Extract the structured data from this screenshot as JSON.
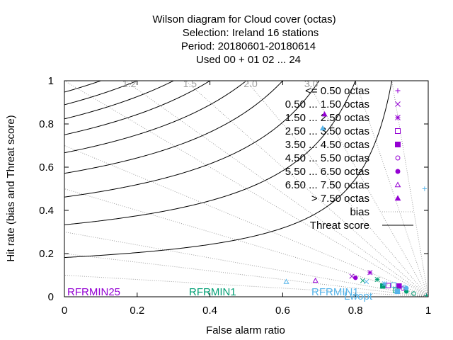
{
  "chart_data": {
    "type": "scatter",
    "title_lines": [
      "Wilson diagram  for Cloud cover (octas)",
      "Selection: Ireland      16 stations",
      "Period: 20180601-20180614",
      "Used  00 + 01 02 ... 24"
    ],
    "xlabel": "False alarm ratio",
    "ylabel": "Hit rate (bias and Threat score)",
    "xlim": [
      0,
      1
    ],
    "ylim": [
      0,
      1
    ],
    "xticks": [
      "0",
      "0.2",
      "0.4",
      "0.6",
      "0.8",
      "1"
    ],
    "yticks": [
      "0",
      "0.2",
      "0.4",
      "0.6",
      "0.8",
      "1"
    ],
    "bias_lines": [
      0.1,
      0.2,
      0.3,
      0.5,
      0.7,
      1.0,
      1.2,
      1.5,
      2.0,
      3.0,
      5.0,
      10.0
    ],
    "bias_labels": [
      {
        "value": 1.2,
        "text": "1.2"
      },
      {
        "value": 1.5,
        "text": "1.5"
      },
      {
        "value": 2.0,
        "text": "2.0"
      },
      {
        "value": 3.0,
        "text": "3.0"
      }
    ],
    "threat_scores": [
      0.1,
      0.2,
      0.3,
      0.4,
      0.5,
      0.6,
      0.7,
      0.8,
      0.9
    ],
    "legend": {
      "placement": "top-right",
      "entries": [
        {
          "label": "<= 0.50 octas",
          "marker": "plus",
          "color": "#9400d3"
        },
        {
          "label": "0.50 ... 1.50 octas",
          "marker": "cross",
          "color": "#9400d3"
        },
        {
          "label": "1.50 ... 2.50 octas",
          "marker": "star",
          "color": "#9400d3"
        },
        {
          "label": "2.50 ... 3.50 octas",
          "marker": "square-open",
          "color": "#9400d3"
        },
        {
          "label": "3.50 ... 4.50 octas",
          "marker": "square-filled",
          "color": "#9400d3"
        },
        {
          "label": "4.50 ... 5.50 octas",
          "marker": "circle-open",
          "color": "#9400d3"
        },
        {
          "label": "5.50 ... 6.50 octas",
          "marker": "circle-filled",
          "color": "#9400d3"
        },
        {
          "label": "6.50 ... 7.50 octas",
          "marker": "triangle-open",
          "color": "#9400d3"
        },
        {
          "label": "> 7.50 octas",
          "marker": "triangle-filled",
          "color": "#9400d3"
        },
        {
          "label": "bias",
          "marker": "dotted-line",
          "color": "#a0a0a0"
        },
        {
          "label": "Threat score",
          "marker": "solid-line",
          "color": "#000000"
        }
      ]
    },
    "models": [
      {
        "name": "RFRMIN25",
        "color": "#9400d3"
      },
      {
        "name": "RFRMIN1",
        "color": "#009e73"
      },
      {
        "name": "RFRMIN1",
        "color": "#56b4e9"
      },
      {
        "name": "Lwopt",
        "color": "#56b4e9"
      }
    ],
    "series": [
      {
        "model": "RFRMIN25",
        "color": "#9400d3",
        "points": [
          {
            "x": 0.995,
            "y": 0.005,
            "marker": "plus"
          },
          {
            "x": 0.79,
            "y": 0.095,
            "marker": "cross"
          },
          {
            "x": 0.84,
            "y": 0.112,
            "marker": "star"
          },
          {
            "x": 0.89,
            "y": 0.052,
            "marker": "square-open"
          },
          {
            "x": 0.92,
            "y": 0.05,
            "marker": "square-filled"
          },
          {
            "x": 0.93,
            "y": 0.038,
            "marker": "circle-open"
          },
          {
            "x": 0.8,
            "y": 0.088,
            "marker": "circle-filled"
          },
          {
            "x": 0.69,
            "y": 0.075,
            "marker": "triangle-open"
          },
          {
            "x": 0.715,
            "y": 0.845,
            "marker": "triangle-filled"
          }
        ]
      },
      {
        "model": "RFRMIN1",
        "color": "#009e73",
        "points": [
          {
            "x": 0.995,
            "y": 0.005,
            "marker": "plus"
          },
          {
            "x": 0.82,
            "y": 0.075,
            "marker": "cross"
          },
          {
            "x": 0.86,
            "y": 0.08,
            "marker": "star"
          },
          {
            "x": 0.875,
            "y": 0.05,
            "marker": "square-filled"
          },
          {
            "x": 0.91,
            "y": 0.03,
            "marker": "square-open"
          },
          {
            "x": 0.94,
            "y": 0.025,
            "marker": "circle-filled"
          },
          {
            "x": 0.96,
            "y": 0.015,
            "marker": "circle-open"
          }
        ]
      },
      {
        "model": "RFRMIN1",
        "color": "#56b4e9",
        "points": [
          {
            "x": 0.99,
            "y": 0.5,
            "marker": "plus"
          },
          {
            "x": 0.83,
            "y": 0.07,
            "marker": "cross"
          },
          {
            "x": 0.88,
            "y": 0.06,
            "marker": "star"
          },
          {
            "x": 0.905,
            "y": 0.055,
            "marker": "square-open"
          },
          {
            "x": 0.915,
            "y": 0.025,
            "marker": "square-filled"
          },
          {
            "x": 0.935,
            "y": 0.045,
            "marker": "circle-open"
          },
          {
            "x": 0.94,
            "y": 0.04,
            "marker": "circle-filled"
          },
          {
            "x": 0.61,
            "y": 0.07,
            "marker": "triangle-open"
          },
          {
            "x": 0.71,
            "y": 0.78,
            "marker": "triangle-filled"
          }
        ]
      }
    ]
  }
}
